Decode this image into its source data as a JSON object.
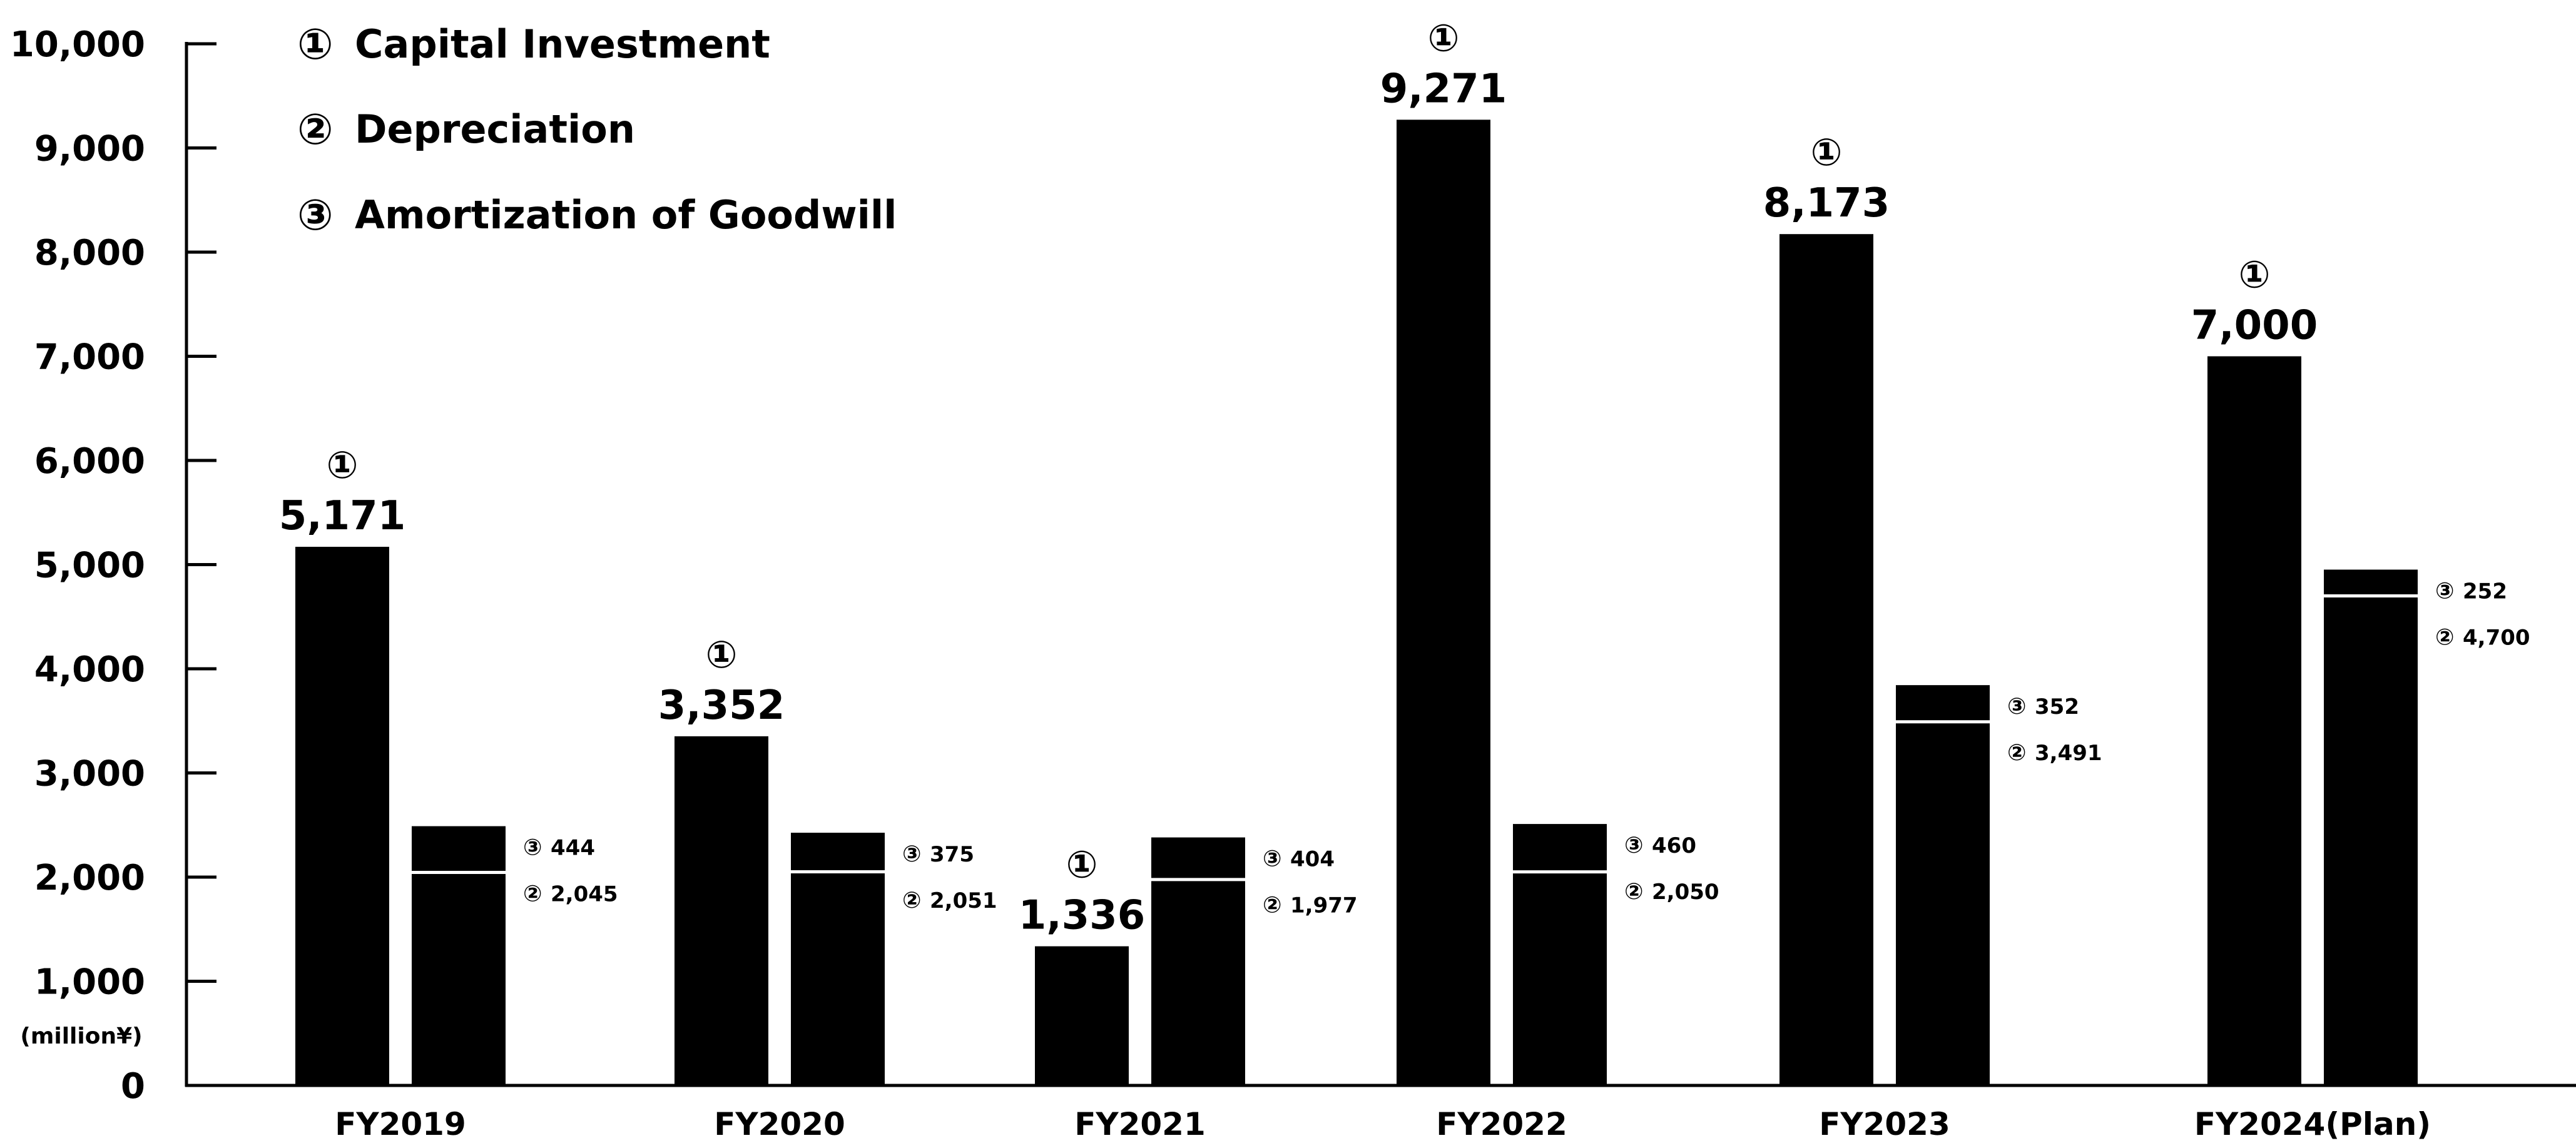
{
  "chart_data": {
    "type": "bar",
    "unit_label": "(million¥)",
    "categories": [
      "FY2019",
      "FY2020",
      "FY2021",
      "FY2022",
      "FY2023",
      "FY2024(Plan)"
    ],
    "ylim": [
      0,
      10000
    ],
    "yticks": [
      0,
      1000,
      2000,
      3000,
      4000,
      5000,
      6000,
      7000,
      8000,
      9000,
      10000
    ],
    "ytick_labels": [
      "0",
      "1,000",
      "2,000",
      "3,000",
      "4,000",
      "5,000",
      "6,000",
      "7,000",
      "8,000",
      "9,000",
      "10,000"
    ],
    "grid": false,
    "legend_position": "top-left",
    "legend": [
      {
        "marker": "①",
        "label": "Capital Investment"
      },
      {
        "marker": "②",
        "label": "Depreciation"
      },
      {
        "marker": "③",
        "label": "Amortization of Goodwill"
      }
    ],
    "series": [
      {
        "marker": "①",
        "values": [
          5171,
          3352,
          1336,
          9271,
          8173,
          7000
        ],
        "labels": [
          "5,171",
          "3,352",
          "1,336",
          "9,271",
          "8,173",
          "7,000"
        ]
      },
      {
        "marker": "②",
        "values": [
          2045,
          2051,
          1977,
          2050,
          3491,
          4700
        ],
        "labels": [
          "2,045",
          "2,051",
          "1,977",
          "2,050",
          "3,491",
          "4,700"
        ]
      },
      {
        "marker": "③",
        "values": [
          444,
          375,
          404,
          460,
          352,
          252
        ],
        "labels": [
          "444",
          "375",
          "404",
          "460",
          "352",
          "252"
        ]
      }
    ],
    "colors": {
      "bar": "#000000",
      "segment_divider": "#ffffff",
      "background": "#ffffff",
      "text": "#000000"
    }
  }
}
